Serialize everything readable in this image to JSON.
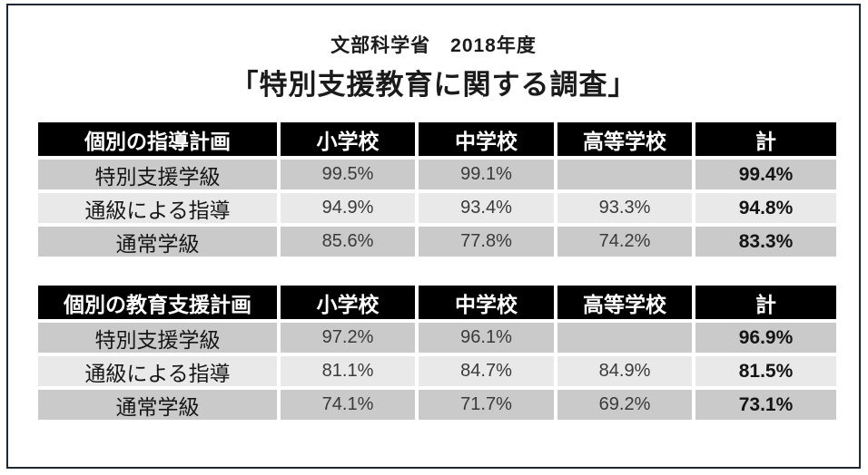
{
  "slide": {
    "title_line1": "文部科学省　2018年度",
    "title_line2": "「特別支援教育に関する調査」"
  },
  "colors": {
    "header_bg": "#000000",
    "header_text": "#ffffff",
    "band_dark": "#cacaca",
    "band_light": "#e9e9e9",
    "accent_red": "#c0362c",
    "frame_border": "#1e2933"
  },
  "tables": [
    {
      "name": "個別の指導計画",
      "columns": [
        "小学校",
        "中学校",
        "高等学校",
        "計"
      ],
      "rows": [
        {
          "label": "特別支援学級",
          "values": [
            "99.5%",
            "99.1%",
            "",
            "99.4%"
          ],
          "highlight": false
        },
        {
          "label": "通級による指導",
          "values": [
            "94.9%",
            "93.4%",
            "93.3%",
            "94.8%"
          ],
          "highlight": false
        },
        {
          "label": "通常学級",
          "values": [
            "85.6%",
            "77.8%",
            "74.2%",
            "83.3%"
          ],
          "highlight": true
        }
      ]
    },
    {
      "name": "個別の教育支援計画",
      "columns": [
        "小学校",
        "中学校",
        "高等学校",
        "計"
      ],
      "rows": [
        {
          "label": "特別支援学級",
          "values": [
            "97.2%",
            "96.1%",
            "",
            "96.9%"
          ],
          "highlight": false
        },
        {
          "label": "通級による指導",
          "values": [
            "81.1%",
            "84.7%",
            "84.9%",
            "81.5%"
          ],
          "highlight": false
        },
        {
          "label": "通常学級",
          "values": [
            "74.1%",
            "71.7%",
            "69.2%",
            "73.1%"
          ],
          "highlight": true
        }
      ]
    }
  ]
}
